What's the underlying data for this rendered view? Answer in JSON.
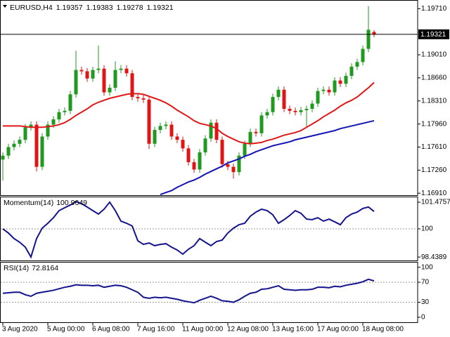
{
  "chart_data": [
    {
      "type": "candlestick",
      "title": "EURUSD,H4",
      "categories": [
        "3 Aug 2020",
        null,
        null,
        null,
        null,
        null,
        null,
        null,
        "5 Aug 00:00",
        null,
        null,
        null,
        null,
        null,
        null,
        null,
        "6 Aug 08:00",
        null,
        null,
        null,
        null,
        null,
        null,
        null,
        "7 Aug 16:00",
        null,
        null,
        null,
        null,
        null,
        null,
        null,
        "11 Aug 00:00",
        null,
        null,
        null,
        null,
        null,
        null,
        null,
        "12 Aug 08:00",
        null,
        null,
        null,
        null,
        null,
        null,
        null,
        "13 Aug 16:00",
        null,
        null,
        null,
        null,
        null,
        null,
        null,
        "17 Aug 00:00",
        null,
        null,
        null,
        null,
        null,
        null,
        null,
        "18 Aug 08:00",
        null,
        null
      ],
      "open": [
        1.1742,
        1.1748,
        1.1761,
        1.1766,
        1.1772,
        1.1791,
        1.1795,
        1.1731,
        1.1777,
        1.1795,
        1.1803,
        1.1814,
        1.1816,
        1.1841,
        1.1878,
        1.1876,
        1.1865,
        1.1878,
        1.188,
        1.1844,
        1.1851,
        1.1878,
        1.188,
        1.1873,
        1.1837,
        1.1835,
        1.1833,
        1.1766,
        1.1787,
        1.1793,
        1.1795,
        1.1777,
        1.1772,
        1.1759,
        1.1738,
        1.1727,
        1.1753,
        1.1774,
        1.1798,
        1.1772,
        1.1735,
        1.1731,
        1.1723,
        1.1748,
        1.1766,
        1.1784,
        1.1782,
        1.1809,
        1.1814,
        1.1837,
        1.1848,
        1.1819,
        1.1816,
        1.1814,
        1.1817,
        1.1819,
        1.1827,
        1.1846,
        1.1848,
        1.1844,
        1.1862,
        1.1857,
        1.1869,
        1.1883,
        1.189,
        1.191,
        1.19357
      ],
      "high": [
        1.1753,
        1.1766,
        1.1771,
        1.1777,
        1.1796,
        1.18,
        1.18,
        1.1782,
        1.18,
        1.1808,
        1.1819,
        1.1821,
        1.1846,
        1.1907,
        1.1883,
        1.1881,
        1.1883,
        1.1915,
        1.1885,
        1.1856,
        1.1891,
        1.1885,
        1.1885,
        1.1878,
        1.1842,
        1.184,
        1.1838,
        1.1792,
        1.1798,
        1.18,
        1.18,
        1.1782,
        1.1777,
        1.1764,
        1.1743,
        1.1758,
        1.1779,
        1.1803,
        1.1803,
        1.1777,
        1.174,
        1.1736,
        1.1753,
        1.1771,
        1.1789,
        1.1789,
        1.1814,
        1.1819,
        1.1842,
        1.1853,
        1.1853,
        1.1824,
        1.1821,
        1.1822,
        1.1824,
        1.1832,
        1.1851,
        1.1853,
        1.1853,
        1.1867,
        1.1867,
        1.1874,
        1.1888,
        1.1895,
        1.1915,
        1.1975,
        1.19383
      ],
      "low": [
        1.171,
        1.1743,
        1.1756,
        1.1761,
        1.1767,
        1.1786,
        1.1724,
        1.1726,
        1.1772,
        1.179,
        1.1798,
        1.1809,
        1.1811,
        1.1836,
        1.1871,
        1.186,
        1.186,
        1.1873,
        1.1839,
        1.1839,
        1.1846,
        1.1873,
        1.1868,
        1.1832,
        1.183,
        1.1828,
        1.1758,
        1.1761,
        1.1782,
        1.1788,
        1.1772,
        1.1767,
        1.1754,
        1.1733,
        1.1722,
        1.1722,
        1.1748,
        1.1769,
        1.1767,
        1.173,
        1.1726,
        1.1713,
        1.1718,
        1.1743,
        1.1761,
        1.1777,
        1.1777,
        1.1804,
        1.1809,
        1.1832,
        1.1814,
        1.1811,
        1.1809,
        1.1809,
        1.179,
        1.1814,
        1.1822,
        1.1841,
        1.1839,
        1.1839,
        1.1852,
        1.1852,
        1.1864,
        1.1878,
        1.1885,
        1.1905,
        1.19278
      ],
      "close": [
        1.1748,
        1.1761,
        1.1766,
        1.1772,
        1.1791,
        1.1795,
        1.1731,
        1.1777,
        1.1795,
        1.1803,
        1.1814,
        1.1816,
        1.1841,
        1.1878,
        1.1876,
        1.1865,
        1.1878,
        1.188,
        1.1844,
        1.1851,
        1.1878,
        1.188,
        1.1873,
        1.1837,
        1.1835,
        1.1833,
        1.1766,
        1.1787,
        1.1793,
        1.1795,
        1.1777,
        1.1772,
        1.1759,
        1.1738,
        1.1727,
        1.1753,
        1.1774,
        1.1798,
        1.1772,
        1.1735,
        1.1731,
        1.1723,
        1.1748,
        1.1766,
        1.1784,
        1.1782,
        1.1809,
        1.1814,
        1.1837,
        1.1848,
        1.1819,
        1.1816,
        1.1814,
        1.1817,
        1.1819,
        1.1827,
        1.1846,
        1.1848,
        1.1844,
        1.1862,
        1.1857,
        1.1869,
        1.1883,
        1.189,
        1.191,
        1.1939,
        1.19321
      ],
      "up_color": "#1f9a1f",
      "down_color": "#e01414",
      "series": [
        {
          "color": "#e01818",
          "values": [
            1.1793,
            1.1793,
            1.1793,
            1.1793,
            1.1792,
            1.1791,
            1.1791,
            1.1791,
            1.1792,
            1.1793,
            1.1795,
            1.1798,
            1.1803,
            1.1809,
            1.1814,
            1.1819,
            1.1825,
            1.1829,
            1.1832,
            1.1835,
            1.1837,
            1.1839,
            1.1841,
            1.1842,
            1.1842,
            1.1841,
            1.1838,
            1.1835,
            1.1832,
            1.1828,
            1.1823,
            1.1817,
            1.1812,
            1.1807,
            1.1801,
            1.1797,
            1.1795,
            1.1793,
            1.1789,
            1.1782,
            1.1777,
            1.1773,
            1.1769,
            1.1767,
            1.1766,
            1.1767,
            1.1768,
            1.1771,
            1.1773,
            1.1776,
            1.1779,
            1.1781,
            1.1783,
            1.1786,
            1.1791,
            1.1796,
            1.1801,
            1.1807,
            1.1812,
            1.1817,
            1.1823,
            1.1828,
            1.1832,
            1.1837,
            1.1844,
            1.1851,
            1.1859
          ]
        },
        {
          "color": "#1414b4",
          "values": [
            null,
            null,
            null,
            null,
            null,
            null,
            null,
            null,
            null,
            null,
            null,
            null,
            null,
            null,
            null,
            null,
            null,
            null,
            null,
            null,
            null,
            null,
            null,
            null,
            null,
            null,
            null,
            null,
            1.1689,
            1.1692,
            1.1695,
            1.17,
            1.1704,
            1.1708,
            1.1711,
            1.1715,
            1.172,
            1.1724,
            1.1728,
            1.1732,
            1.1737,
            1.174,
            1.1743,
            1.1747,
            1.175,
            1.1754,
            1.1757,
            1.176,
            1.1763,
            1.1765,
            1.1767,
            1.1769,
            1.1772,
            1.1774,
            1.1776,
            1.1778,
            1.178,
            1.1782,
            1.1784,
            1.1786,
            1.1789,
            1.1791,
            1.1793,
            1.1795,
            1.1797,
            1.1799,
            1.1801
          ]
        }
      ],
      "ylim": [
        1.1688,
        1.1982
      ],
      "yticks": [
        {
          "value": 1.1971,
          "label": "1.19710"
        },
        {
          "value": 1.1901,
          "label": "1.19010"
        },
        {
          "value": 1.1866,
          "label": "1.18660"
        },
        {
          "value": 1.1831,
          "label": "1.18310"
        },
        {
          "value": 1.1796,
          "label": "1.17960"
        },
        {
          "value": 1.1761,
          "label": "1.17610"
        },
        {
          "value": 1.1726,
          "label": "1.17260"
        },
        {
          "value": 1.1691,
          "label": "1.16910"
        }
      ]
    },
    {
      "type": "line",
      "title": "Momentum(14)",
      "series": [
        {
          "color": "#14148c",
          "values": [
            100.0,
            99.77,
            99.46,
            99.26,
            98.99,
            98.44,
            99.46,
            100.04,
            100.31,
            100.62,
            101.01,
            101.17,
            101.32,
            101.52,
            101.4,
            101.21,
            101.01,
            100.82,
            101.09,
            101.48,
            101.01,
            100.43,
            100.31,
            100.16,
            99.34,
            99.14,
            99.22,
            99.07,
            99.14,
            99.18,
            98.99,
            98.83,
            98.6,
            98.87,
            99.07,
            99.46,
            99.26,
            99.07,
            99.3,
            99.38,
            99.77,
            100.04,
            100.23,
            100.31,
            100.7,
            100.93,
            101.09,
            101.01,
            100.78,
            100.31,
            100.51,
            100.74,
            101.01,
            100.86,
            100.54,
            100.51,
            100.62,
            100.43,
            100.54,
            100.39,
            100.23,
            100.62,
            100.82,
            100.93,
            101.13,
            101.21,
            100.9649
          ]
        }
      ],
      "ylim": [
        98.25,
        101.71
      ],
      "yticks": [
        101.4757,
        100,
        98.4389
      ],
      "levels": [
        100
      ]
    },
    {
      "type": "line",
      "title": "RSI(14)",
      "series": [
        {
          "color": "#14148c",
          "values": [
            48,
            49,
            50,
            50,
            45,
            42,
            48,
            50,
            52,
            54,
            57,
            60,
            62,
            65,
            64,
            64,
            63,
            64,
            60,
            62,
            64,
            63,
            60,
            55,
            50,
            40,
            38,
            40,
            39,
            40,
            38,
            36,
            33,
            31,
            29,
            34,
            38,
            42,
            38,
            33,
            32,
            30,
            35,
            42,
            48,
            50,
            56,
            57,
            60,
            63,
            56,
            55,
            54,
            55,
            55,
            56,
            60,
            60,
            59,
            62,
            61,
            64,
            66,
            68,
            71,
            76,
            72.8164
          ]
        }
      ],
      "ylim": [
        -10,
        108
      ],
      "yticks": [
        100,
        70,
        30,
        0
      ],
      "levels": [
        70,
        30
      ]
    }
  ]
}
